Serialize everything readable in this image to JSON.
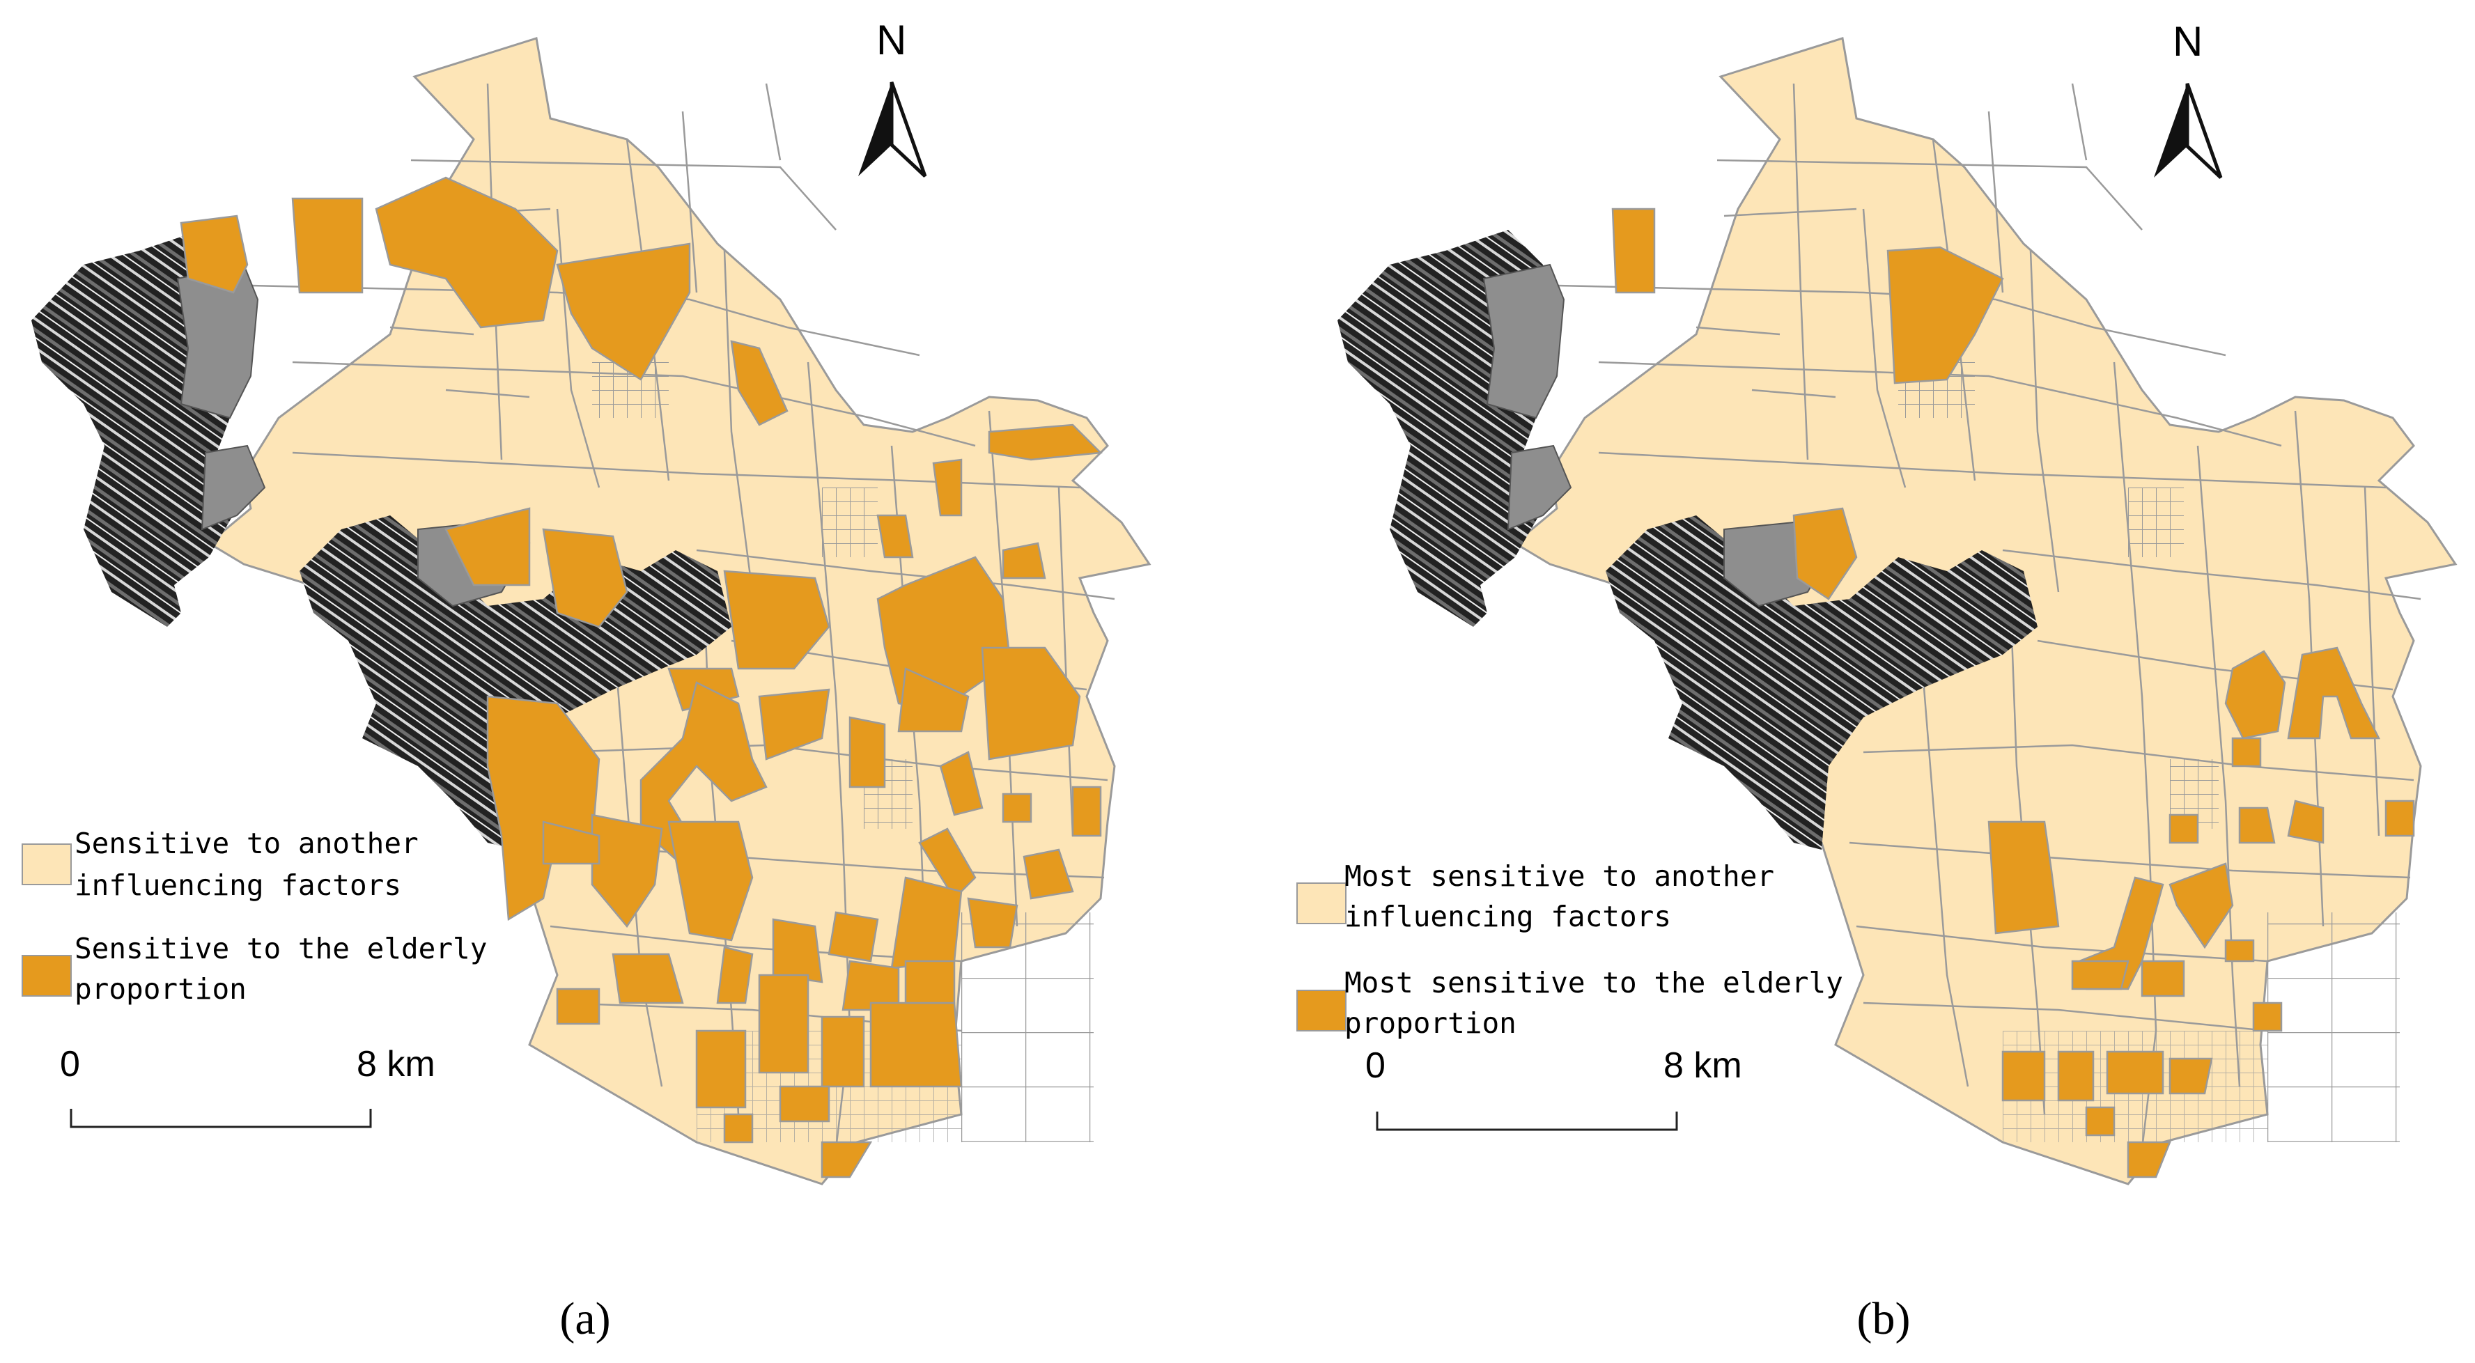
{
  "colors": {
    "background": "#ffffff",
    "other_factors": "#fde5b7",
    "elderly_proportion": "#e59a1e",
    "boundary_line": "#9a9a9a",
    "mountain_dark": "#1c1c1c",
    "mountain_gray": "#8a8a8a"
  },
  "panels": [
    {
      "panel_label": "(a)",
      "north_label": "N",
      "legend": [
        {
          "line1": "Sensitive to another",
          "line2": "influencing factors",
          "class": "other_factors"
        },
        {
          "line1": "Sensitive to the elderly",
          "line2": "proportion",
          "class": "elderly_proportion"
        }
      ],
      "scale_bar": {
        "start": "0",
        "end": "8 km"
      }
    },
    {
      "panel_label": "(b)",
      "north_label": "N",
      "legend": [
        {
          "line1": "Most sensitive  to another",
          "line2": "influencing factors",
          "class": "other_factors"
        },
        {
          "line1": "Most sensitive to the elderly",
          "line2": "proportion",
          "class": "elderly_proportion"
        }
      ],
      "scale_bar": {
        "start": "0",
        "end": "8 km"
      }
    }
  ]
}
